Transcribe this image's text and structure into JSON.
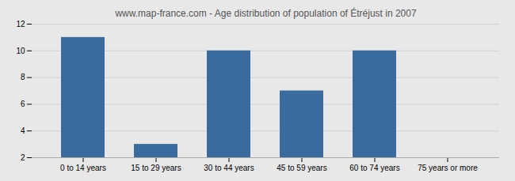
{
  "chart_data": {
    "type": "bar",
    "title": "www.map-france.com - Age distribution of population of Étréjust in 2007",
    "categories": [
      "0 to 14 years",
      "15 to 29 years",
      "30 to 44 years",
      "45 to 59 years",
      "60 to 74 years",
      "75 years or more"
    ],
    "values": [
      11,
      3,
      10,
      7,
      10,
      2
    ],
    "color": "#3a6b9e",
    "ylim": [
      2,
      12
    ],
    "yticks": [
      2,
      4,
      6,
      8,
      10,
      12
    ],
    "grid": true
  }
}
